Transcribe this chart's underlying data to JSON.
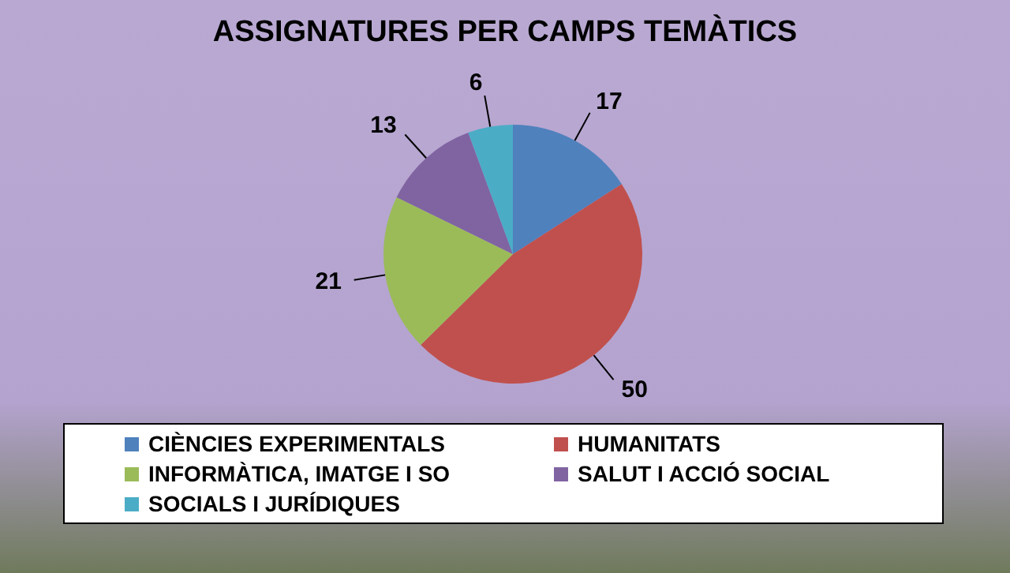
{
  "chart_data": {
    "type": "pie",
    "title": "ASSIGNATURES PER CAMPS TEMÀTICS",
    "categories": [
      "CIÈNCIES EXPERIMENTALS",
      "HUMANITATS",
      "INFORMÀTICA, IMATGE I SO",
      "SALUT I ACCIÓ SOCIAL",
      "SOCIALS I JURÍDIQUES"
    ],
    "values": [
      17,
      50,
      21,
      13,
      6
    ],
    "colors": [
      "#4f81bd",
      "#c0504d",
      "#9bbb59",
      "#8064a2",
      "#4bacc6"
    ],
    "data_labels": true,
    "legend": "bottom"
  }
}
